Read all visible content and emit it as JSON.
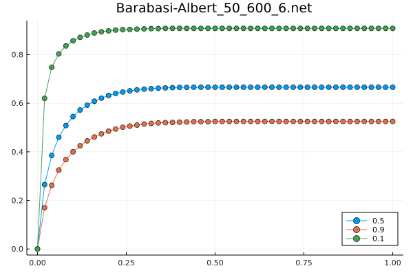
{
  "chart_data": {
    "type": "line",
    "title": "Barabasi-Albert_50_600_6.net",
    "xlabel": "",
    "ylabel": "",
    "xlim": [
      -0.03,
      1.03
    ],
    "ylim": [
      -0.025,
      0.94
    ],
    "x_ticks": [
      0,
      0.25,
      0.5,
      0.75,
      1.0
    ],
    "x_tick_labels": [
      "0.00",
      "0.25",
      "0.50",
      "0.75",
      "1.00"
    ],
    "y_ticks": [
      0,
      0.2,
      0.4,
      0.6,
      0.8
    ],
    "y_tick_labels": [
      "0.0",
      "0.2",
      "0.4",
      "0.6",
      "0.8"
    ],
    "grid": true,
    "legend_position": "bottom-right",
    "x": [
      0,
      0.02,
      0.04,
      0.06,
      0.08,
      0.1,
      0.12,
      0.14,
      0.16,
      0.18,
      0.2,
      0.22,
      0.24,
      0.26,
      0.28,
      0.3,
      0.32,
      0.34,
      0.36,
      0.38,
      0.4,
      0.42,
      0.44,
      0.46,
      0.48,
      0.5,
      0.52,
      0.54,
      0.56,
      0.58,
      0.6,
      0.62,
      0.64,
      0.66,
      0.68,
      0.7,
      0.72,
      0.74,
      0.76,
      0.78,
      0.8,
      0.82,
      0.84,
      0.86,
      0.88,
      0.9,
      0.92,
      0.94,
      0.96,
      0.98,
      1.0
    ],
    "series": [
      {
        "name": "0.5",
        "color": "#009AFA",
        "values": [
          0.0,
          0.265,
          0.385,
          0.46,
          0.508,
          0.545,
          0.572,
          0.592,
          0.608,
          0.621,
          0.632,
          0.64,
          0.646,
          0.651,
          0.655,
          0.658,
          0.66,
          0.662,
          0.663,
          0.664,
          0.665,
          0.665,
          0.666,
          0.666,
          0.666,
          0.666,
          0.666,
          0.666,
          0.666,
          0.666,
          0.666,
          0.666,
          0.666,
          0.666,
          0.666,
          0.666,
          0.666,
          0.666,
          0.666,
          0.666,
          0.666,
          0.666,
          0.666,
          0.666,
          0.666,
          0.666,
          0.666,
          0.666,
          0.666,
          0.666,
          0.666
        ]
      },
      {
        "name": "0.9",
        "color": "#E36F47",
        "values": [
          0.0,
          0.17,
          0.262,
          0.325,
          0.368,
          0.4,
          0.425,
          0.445,
          0.461,
          0.474,
          0.485,
          0.494,
          0.501,
          0.506,
          0.51,
          0.514,
          0.517,
          0.519,
          0.52,
          0.521,
          0.522,
          0.523,
          0.524,
          0.524,
          0.524,
          0.525,
          0.525,
          0.525,
          0.525,
          0.525,
          0.525,
          0.525,
          0.525,
          0.525,
          0.525,
          0.525,
          0.525,
          0.525,
          0.525,
          0.525,
          0.525,
          0.525,
          0.525,
          0.525,
          0.525,
          0.525,
          0.525,
          0.525,
          0.525,
          0.525,
          0.525
        ]
      },
      {
        "name": "0.1",
        "color": "#3EA44E",
        "values": [
          0.0,
          0.62,
          0.748,
          0.803,
          0.836,
          0.857,
          0.871,
          0.881,
          0.889,
          0.894,
          0.898,
          0.901,
          0.903,
          0.904,
          0.905,
          0.906,
          0.907,
          0.907,
          0.908,
          0.908,
          0.908,
          0.908,
          0.908,
          0.908,
          0.908,
          0.908,
          0.908,
          0.908,
          0.908,
          0.908,
          0.908,
          0.908,
          0.908,
          0.908,
          0.908,
          0.908,
          0.908,
          0.908,
          0.908,
          0.908,
          0.908,
          0.908,
          0.908,
          0.908,
          0.908,
          0.908,
          0.908,
          0.908,
          0.908,
          0.908,
          0.908
        ]
      }
    ]
  }
}
